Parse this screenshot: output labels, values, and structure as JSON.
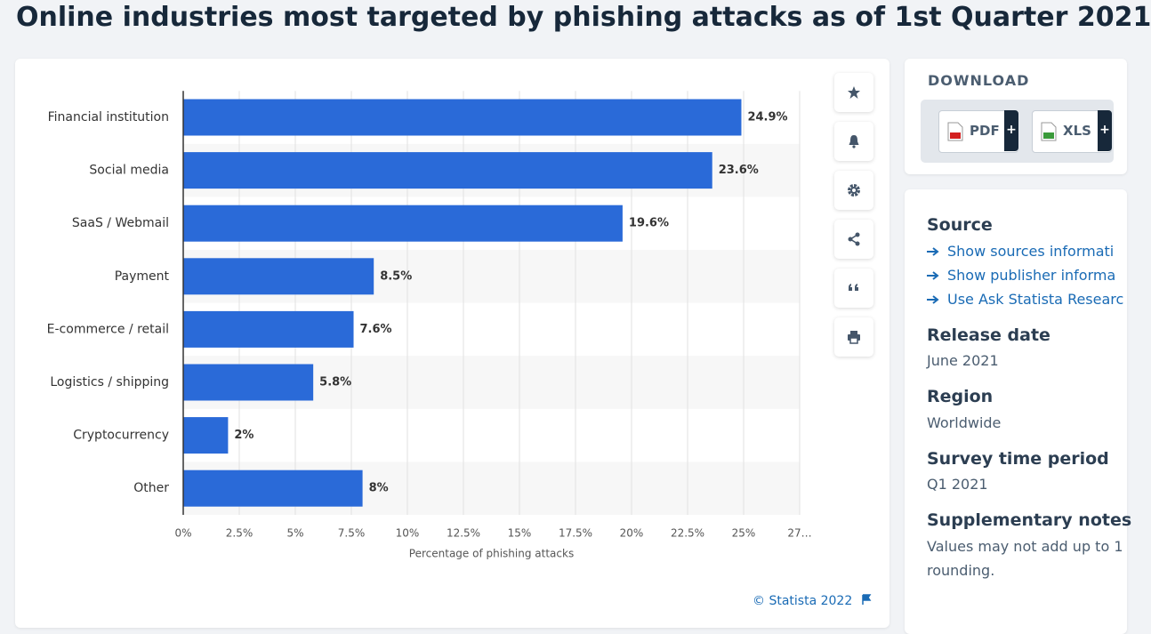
{
  "header": {
    "title": "Online industries most targeted by phishing attacks as of 1st Quarter 2021"
  },
  "chart_data": {
    "type": "bar",
    "orientation": "horizontal",
    "categories": [
      "Financial institution",
      "Social media",
      "SaaS / Webmail",
      "Payment",
      "E-commerce / retail",
      "Logistics / shipping",
      "Cryptocurrency",
      "Other"
    ],
    "values": [
      24.9,
      23.6,
      19.6,
      8.5,
      7.6,
      5.8,
      2,
      8
    ],
    "value_labels": [
      "24.9%",
      "23.6%",
      "19.6%",
      "8.5%",
      "7.6%",
      "5.8%",
      "2%",
      "8%"
    ],
    "color": "#2a6ad8",
    "xlim": [
      0,
      27.5
    ],
    "xticks": [
      {
        "value": 0,
        "label": "0%"
      },
      {
        "value": 2.5,
        "label": "2.5%"
      },
      {
        "value": 5,
        "label": "5%"
      },
      {
        "value": 7.5,
        "label": "7.5%"
      },
      {
        "value": 10,
        "label": "10%"
      },
      {
        "value": 12.5,
        "label": "12.5%"
      },
      {
        "value": 15,
        "label": "15%"
      },
      {
        "value": 17.5,
        "label": "17.5%"
      },
      {
        "value": 20,
        "label": "20%"
      },
      {
        "value": 22.5,
        "label": "22.5%"
      },
      {
        "value": 25,
        "label": "25%"
      },
      {
        "value": 27.5,
        "label": "27…"
      }
    ],
    "xlabel": "Percentage of phishing attacks",
    "grid": true
  },
  "footer": {
    "credit": "© Statista 2022"
  },
  "download": {
    "title": "DOWNLOAD",
    "buttons": [
      "PDF",
      "XLS"
    ]
  },
  "details": {
    "source": {
      "title": "Source",
      "links": [
        "Show sources informati",
        "Show publisher informa",
        "Use Ask Statista Researc"
      ]
    },
    "sections": [
      {
        "title": "Release date",
        "text": "June 2021"
      },
      {
        "title": "Region",
        "text": "Worldwide"
      },
      {
        "title": "Survey time period",
        "text": "Q1 2021"
      }
    ],
    "notes": {
      "title": "Supplementary notes",
      "lines": [
        "Values may not add up to 1",
        "rounding."
      ]
    }
  }
}
